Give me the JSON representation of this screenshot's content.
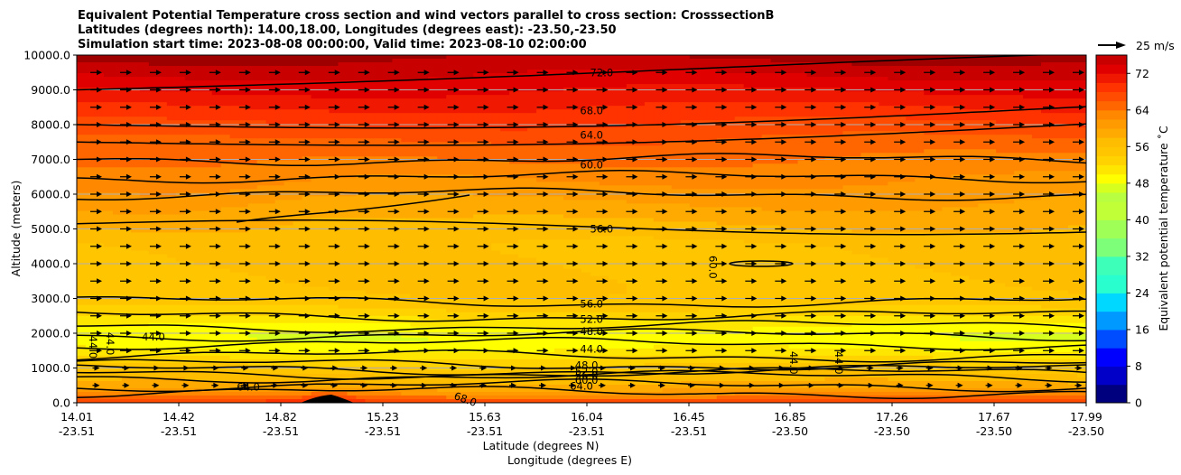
{
  "title_lines": [
    "Equivalent Potential Temperature cross section and wind vectors parallel to cross section: CrosssectionB",
    "Latitudes (degrees north): 14.00,18.00, Longitudes (degrees east): -23.50,-23.50",
    "Simulation start time: 2023-08-08 00:00:00, Valid time: 2023-08-10 02:00:00"
  ],
  "quiver_key": "25 m/s",
  "colors": {
    "band_stops": [
      [
        0,
        "#00007f"
      ],
      [
        4,
        "#0000c8"
      ],
      [
        8,
        "#0000ff"
      ],
      [
        12,
        "#004cff"
      ],
      [
        16,
        "#0099ff"
      ],
      [
        20,
        "#00d8ff"
      ],
      [
        24,
        "#29ffce"
      ],
      [
        28,
        "#3dffba"
      ],
      [
        32,
        "#7dff7a"
      ],
      [
        36,
        "#a0ff57"
      ],
      [
        40,
        "#c1ff36"
      ],
      [
        44,
        "#b7ff40"
      ],
      [
        46,
        "#d6ff20"
      ],
      [
        48,
        "#ffff00"
      ],
      [
        50,
        "#ffe600"
      ],
      [
        52,
        "#ffd200"
      ],
      [
        54,
        "#ffc600"
      ],
      [
        56,
        "#ffbd00"
      ],
      [
        58,
        "#ffaa00"
      ],
      [
        60,
        "#ff9a00"
      ],
      [
        62,
        "#ff8800"
      ],
      [
        64,
        "#ff6600"
      ],
      [
        66,
        "#ff4c00"
      ],
      [
        68,
        "#ff3300"
      ],
      [
        70,
        "#f01800"
      ],
      [
        72,
        "#e00000"
      ],
      [
        74,
        "#c80000"
      ],
      [
        76,
        "#9e0000"
      ]
    ],
    "grid": "#b0b0b0",
    "line": "#000000"
  },
  "chart_data": {
    "type": "contour",
    "ylabel": "Altitude (meters)",
    "xlabel_lines": [
      "Latitude (degrees N)",
      "Longitude (degrees E)"
    ],
    "ylim": [
      0,
      10000
    ],
    "y_ticks": [
      "0.0",
      "1000.0",
      "2000.0",
      "3000.0",
      "4000.0",
      "5000.0",
      "6000.0",
      "7000.0",
      "8000.0",
      "9000.0",
      "10000.0"
    ],
    "x_ticks": [
      {
        "lat": "14.01",
        "lon": "-23.51"
      },
      {
        "lat": "14.42",
        "lon": "-23.51"
      },
      {
        "lat": "14.82",
        "lon": "-23.51"
      },
      {
        "lat": "15.23",
        "lon": "-23.51"
      },
      {
        "lat": "15.63",
        "lon": "-23.51"
      },
      {
        "lat": "16.04",
        "lon": "-23.51"
      },
      {
        "lat": "16.45",
        "lon": "-23.51"
      },
      {
        "lat": "16.85",
        "lon": "-23.50"
      },
      {
        "lat": "17.26",
        "lon": "-23.50"
      },
      {
        "lat": "17.67",
        "lon": "-23.50"
      },
      {
        "lat": "17.99",
        "lon": "-23.50"
      }
    ],
    "colorbar": {
      "label": "Equivalent potential temperature ˚C",
      "range": [
        0,
        76
      ],
      "tick_values": [
        0,
        8,
        16,
        24,
        32,
        40,
        48,
        56,
        64,
        72
      ],
      "tick_labels": [
        "0",
        "8",
        "16",
        "24",
        "32",
        "40",
        "48",
        "56",
        "64",
        "72"
      ]
    },
    "contour_labels": [
      {
        "text": "72.0",
        "x": 0.52,
        "alt": 9500
      },
      {
        "text": "68.0",
        "x": 0.51,
        "alt": 8400
      },
      {
        "text": "64.0",
        "x": 0.51,
        "alt": 7700
      },
      {
        "text": "60.0",
        "x": 0.51,
        "alt": 6850
      },
      {
        "text": "56.0",
        "x": 0.52,
        "alt": 5000
      },
      {
        "text": "60.0",
        "x": 0.63,
        "alt": 3900,
        "rot": 90
      },
      {
        "text": "56.0",
        "x": 0.51,
        "alt": 2850
      },
      {
        "text": "52.0",
        "x": 0.51,
        "alt": 2400
      },
      {
        "text": "48.0",
        "x": 0.51,
        "alt": 2050
      },
      {
        "text": "44.0",
        "x": 0.51,
        "alt": 1550
      },
      {
        "text": "44.0",
        "x": 0.076,
        "alt": 1900
      },
      {
        "text": "44.0",
        "x": 0.033,
        "alt": 1700,
        "rot": 90
      },
      {
        "text": "44.0",
        "x": 0.016,
        "alt": 1600,
        "rot": 90
      },
      {
        "text": "44.0",
        "x": 0.71,
        "alt": 1150,
        "rot": 90
      },
      {
        "text": "44.0",
        "x": 0.755,
        "alt": 1150,
        "rot": 90
      },
      {
        "text": "48.0",
        "x": 0.505,
        "alt": 1080
      },
      {
        "text": "52.0",
        "x": 0.505,
        "alt": 900
      },
      {
        "text": "56.0",
        "x": 0.505,
        "alt": 780
      },
      {
        "text": "60.0",
        "x": 0.505,
        "alt": 650
      },
      {
        "text": "64.0",
        "x": 0.17,
        "alt": 450
      },
      {
        "text": "64.0",
        "x": 0.5,
        "alt": 480
      },
      {
        "text": "68.0",
        "x": 0.385,
        "alt": 100,
        "rot": 20
      }
    ],
    "wind_vector_rows_alt": [
      500,
      1000,
      1500,
      2000,
      2500,
      3000,
      3500,
      4000,
      4500,
      5000,
      5500,
      6000,
      6500,
      7000,
      7500,
      8000,
      8500,
      9000,
      9500
    ]
  }
}
